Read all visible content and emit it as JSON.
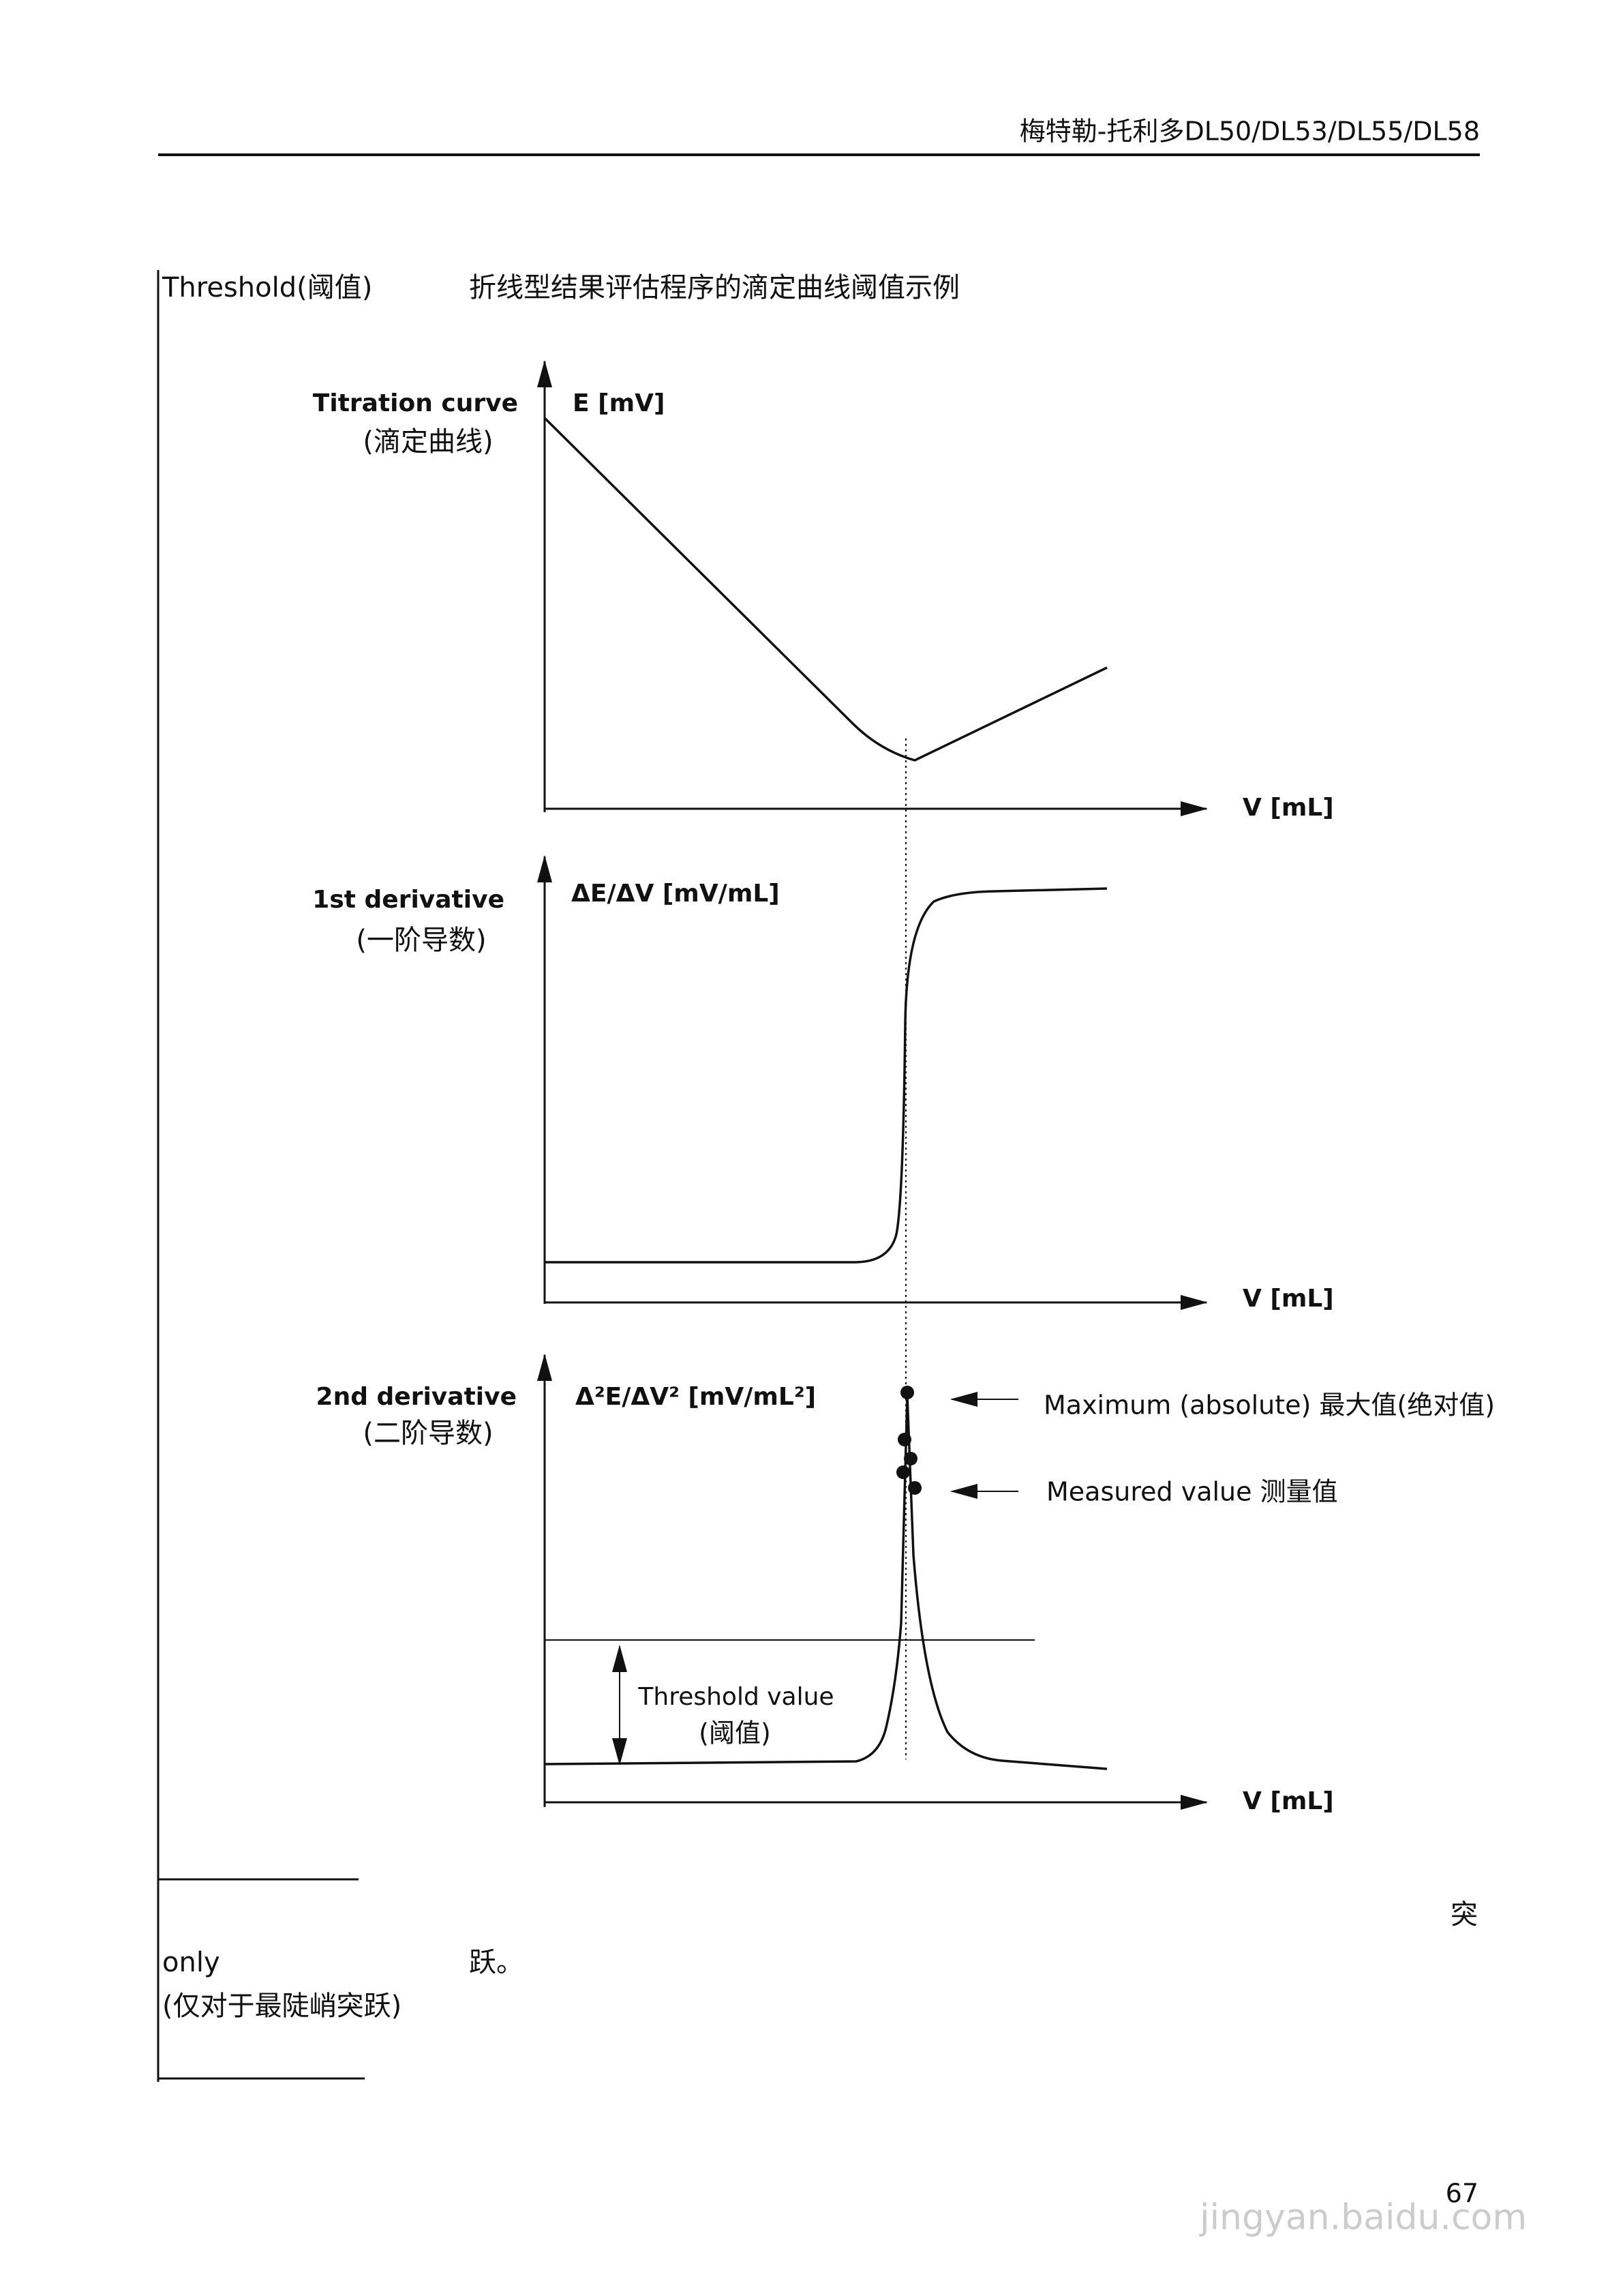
{
  "header": {
    "title": "梅特勒-托利多DL50/DL53/DL55/DL58"
  },
  "section": {
    "label": "Threshold(阈值)",
    "caption": "折线型结果评估程序的滴定曲线阈值示例"
  },
  "panels": [
    {
      "label": "Titration curve",
      "label_cn": "(滴定曲线)",
      "y_axis": "E [mV]",
      "x_axis": "V [mL]"
    },
    {
      "label": "1st derivative",
      "label_cn": "(一阶导数)",
      "y_axis": "ΔE/ΔV [mV/mL]",
      "x_axis": "V [mL]"
    },
    {
      "label": "2nd derivative",
      "label_cn": "(二阶导数)",
      "y_axis": "Δ²E/ΔV²  [mV/mL²]",
      "x_axis": "V [mL]"
    }
  ],
  "annotations": {
    "maximum": "Maximum (absolute) 最大值(绝对值)",
    "measured": "Measured value  测量值",
    "threshold": "Threshold value",
    "threshold_cn": "(阈值)"
  },
  "footer": {
    "fragment_right": "突",
    "only": "only",
    "fragment_mid": "跃。",
    "note": "(仅对于最陡峭突跃)"
  },
  "page_number": "67",
  "watermark": "jingyan.baidu.com"
}
